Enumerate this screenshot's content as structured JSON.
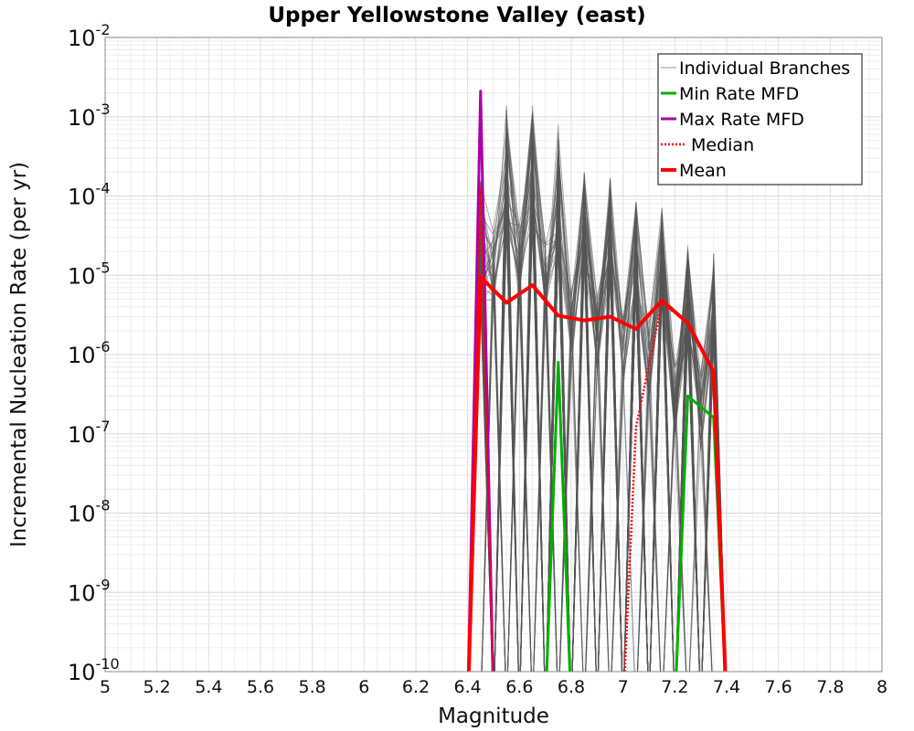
{
  "chart_data": {
    "type": "line",
    "title": "Upper Yellowstone Valley (east)",
    "xlabel": "Magnitude",
    "ylabel": "Incremental Nucleation Rate (per yr)",
    "xlim": [
      5,
      8
    ],
    "ylim": [
      1e-10,
      0.01
    ],
    "y_scale": "log",
    "grid": true,
    "legend_position": "top-right",
    "x_ticks": [
      "5",
      "5.2",
      "5.4",
      "5.6",
      "5.8",
      "6",
      "6.2",
      "6.4",
      "6.6",
      "6.8",
      "7",
      "7.2",
      "7.4",
      "7.6",
      "7.8",
      "8"
    ],
    "y_ticks": [
      {
        "base": "10",
        "exp": "-10"
      },
      {
        "base": "10",
        "exp": "-9"
      },
      {
        "base": "10",
        "exp": "-8"
      },
      {
        "base": "10",
        "exp": "-7"
      },
      {
        "base": "10",
        "exp": "-6"
      },
      {
        "base": "10",
        "exp": "-5"
      },
      {
        "base": "10",
        "exp": "-4"
      },
      {
        "base": "10",
        "exp": "-3"
      },
      {
        "base": "10",
        "exp": "-2"
      }
    ],
    "x": [
      6.45,
      6.55,
      6.65,
      6.75,
      6.85,
      6.95,
      7.05,
      7.15,
      7.25,
      7.35
    ],
    "series": [
      {
        "name": "Individual Branches",
        "color": "#555555",
        "style": "thin"
      },
      {
        "name": "Min Rate MFD",
        "color": "#00b000",
        "style": "solid",
        "points": [
          [
            6.75,
            8e-07
          ],
          [
            7.25,
            3e-07
          ],
          [
            7.35,
            1.6e-07
          ]
        ]
      },
      {
        "name": "Max Rate MFD",
        "color": "#aa00aa",
        "style": "solid",
        "points": [
          [
            6.45,
            0.0021
          ]
        ]
      },
      {
        "name": "Median",
        "color": "#ff0000",
        "style": "dotted",
        "points": [
          [
            6.45,
            0.00013
          ],
          [
            7.05,
            1.2e-07
          ],
          [
            7.15,
            4.5e-06
          ],
          [
            7.25,
            2.5e-06
          ],
          [
            7.35,
            6e-07
          ]
        ]
      },
      {
        "name": "Mean",
        "color": "#ff0000",
        "style": "thick",
        "points": [
          [
            6.45,
            9.5e-06
          ],
          [
            6.55,
            4.5e-06
          ],
          [
            6.65,
            7.5e-06
          ],
          [
            6.75,
            3.1e-06
          ],
          [
            6.85,
            2.7e-06
          ],
          [
            6.95,
            3e-06
          ],
          [
            7.05,
            2.1e-06
          ],
          [
            7.15,
            4.8e-06
          ],
          [
            7.25,
            2.5e-06
          ],
          [
            7.35,
            6e-07
          ]
        ]
      }
    ],
    "branch_bins": [
      {
        "x": 6.45,
        "max": 0.00017
      },
      {
        "x": 6.55,
        "max": 0.0014
      },
      {
        "x": 6.65,
        "max": 0.0014
      },
      {
        "x": 6.75,
        "max": 0.0008
      },
      {
        "x": 6.85,
        "max": 0.0002
      },
      {
        "x": 6.95,
        "max": 0.00017
      },
      {
        "x": 7.05,
        "max": 9e-05
      },
      {
        "x": 7.15,
        "max": 7.5e-05
      },
      {
        "x": 7.25,
        "max": 2.5e-05
      },
      {
        "x": 7.35,
        "max": 1.9e-05
      }
    ]
  }
}
